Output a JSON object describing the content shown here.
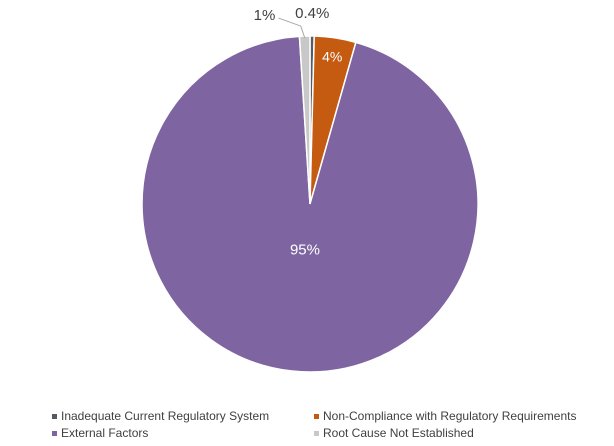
{
  "chart_data": {
    "type": "pie",
    "title": "",
    "slices": [
      {
        "name": "Inadequate Current Regulatory System",
        "value": 0.4,
        "label": "0.4%",
        "color": "#555a64"
      },
      {
        "name": "Non-Compliance with Regulatory Requirements",
        "value": 4,
        "label": "4%",
        "color": "#c55a11"
      },
      {
        "name": "External Factors",
        "value": 94.6,
        "label": "95%",
        "color": "#7e64a0"
      },
      {
        "name": "Root Cause Not Established",
        "value": 1,
        "label": "1%",
        "color": "#c8c8c8"
      }
    ],
    "legend_placement": "bottom"
  }
}
